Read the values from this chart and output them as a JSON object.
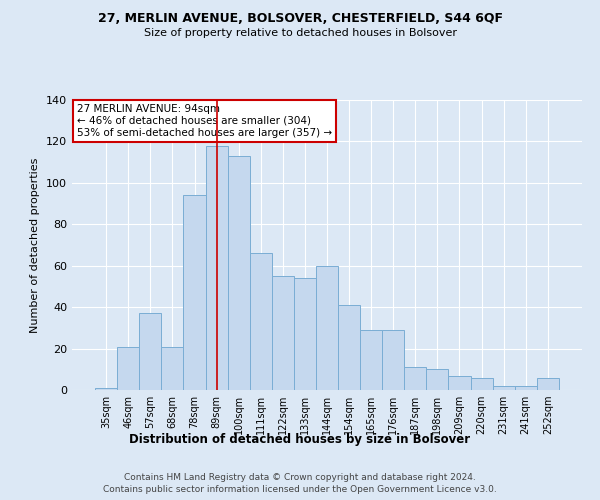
{
  "title1": "27, MERLIN AVENUE, BOLSOVER, CHESTERFIELD, S44 6QF",
  "title2": "Size of property relative to detached houses in Bolsover",
  "xlabel": "Distribution of detached houses by size in Bolsover",
  "ylabel": "Number of detached properties",
  "categories": [
    "35sqm",
    "46sqm",
    "57sqm",
    "68sqm",
    "78sqm",
    "89sqm",
    "100sqm",
    "111sqm",
    "122sqm",
    "133sqm",
    "144sqm",
    "154sqm",
    "165sqm",
    "176sqm",
    "187sqm",
    "198sqm",
    "209sqm",
    "220sqm",
    "231sqm",
    "241sqm",
    "252sqm"
  ],
  "values": [
    1,
    21,
    37,
    21,
    94,
    118,
    113,
    66,
    55,
    54,
    60,
    41,
    29,
    29,
    11,
    10,
    7,
    6,
    2,
    2,
    6
  ],
  "bar_color": "#c5d8ee",
  "bar_edge_color": "#7aadd4",
  "marker_index": 5,
  "marker_color": "#cc0000",
  "annotation_text": "27 MERLIN AVENUE: 94sqm\n← 46% of detached houses are smaller (304)\n53% of semi-detached houses are larger (357) →",
  "footnote1": "Contains HM Land Registry data © Crown copyright and database right 2024.",
  "footnote2": "Contains public sector information licensed under the Open Government Licence v3.0.",
  "ylim": [
    0,
    140
  ],
  "yticks": [
    0,
    20,
    40,
    60,
    80,
    100,
    120,
    140
  ],
  "bg_color": "#dce8f5",
  "plot_bg_color": "#dce8f5",
  "annotation_box_edge": "#cc0000",
  "title1_fontsize": 9,
  "title2_fontsize": 8
}
